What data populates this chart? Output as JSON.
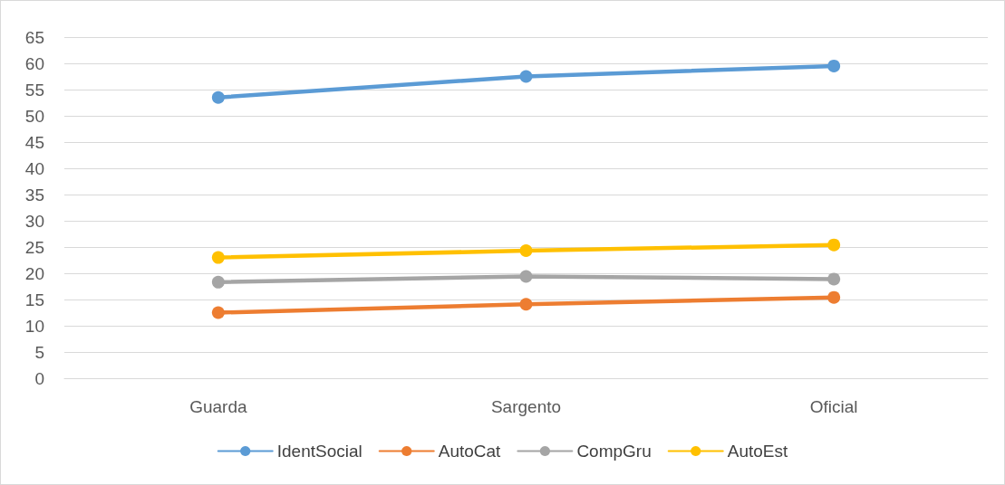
{
  "chart_data": {
    "type": "line",
    "categories": [
      "Guarda",
      "Sargento",
      "Oficial"
    ],
    "series": [
      {
        "name": "IdentSocial",
        "color": "#5b9bd5",
        "values": [
          53.5,
          57.5,
          59.5
        ]
      },
      {
        "name": "AutoCat",
        "color": "#ed7d31",
        "values": [
          12.5,
          14.1,
          15.4
        ]
      },
      {
        "name": "CompGru",
        "color": "#a5a5a5",
        "values": [
          18.3,
          19.4,
          18.9
        ]
      },
      {
        "name": "AutoEst",
        "color": "#ffc000",
        "values": [
          23,
          24.3,
          25.4
        ]
      }
    ],
    "ylim": [
      0,
      65
    ],
    "yticks": [
      0,
      5,
      10,
      15,
      20,
      25,
      30,
      35,
      40,
      45,
      50,
      55,
      60,
      65
    ],
    "grid": "y",
    "legend": "bottom",
    "marker": "circle",
    "line_style": "solid"
  }
}
